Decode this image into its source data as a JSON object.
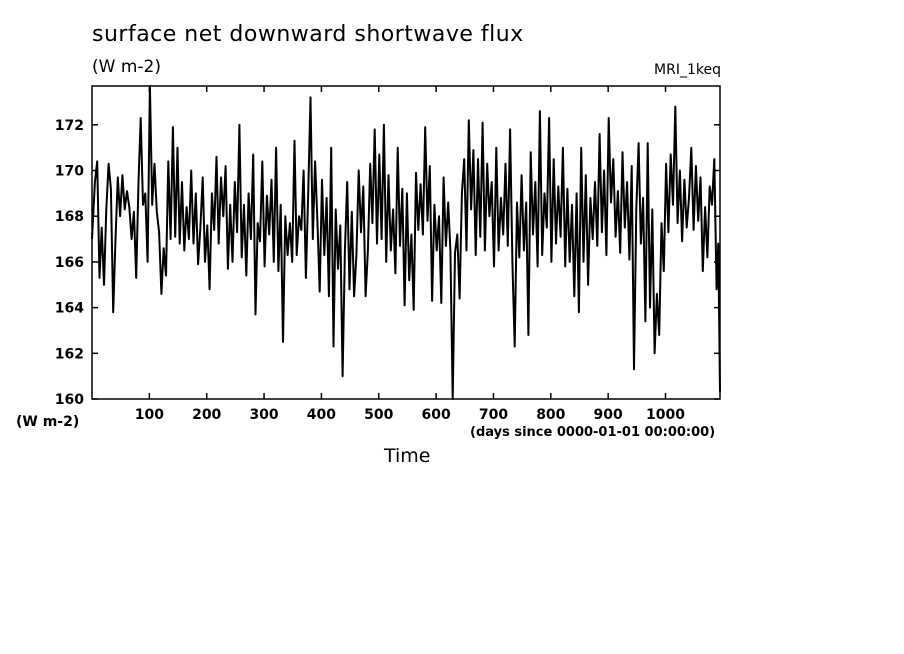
{
  "chart_data": {
    "type": "line",
    "title": "surface net downward shortwave flux",
    "units": "(W m-2)",
    "dataset": "MRI_1keq",
    "ylabel_units": "(W m-2)",
    "xlabel": "Time",
    "xunits": "(days since 0000-01-01 00:00:00)",
    "xlim": [
      0,
      1095
    ],
    "ylim": [
      160,
      173.7
    ],
    "xticks": [
      100,
      200,
      300,
      400,
      500,
      600,
      700,
      800,
      900,
      1000
    ],
    "yticks": [
      160,
      162,
      164,
      166,
      168,
      170,
      172
    ],
    "series": [
      {
        "color": "#000000",
        "points": [
          [
            0,
            167.0
          ],
          [
            5,
            169.5
          ],
          [
            9,
            170.4
          ],
          [
            13,
            165.3
          ],
          [
            17,
            167.5
          ],
          [
            21,
            165.0
          ],
          [
            25,
            168.3
          ],
          [
            29,
            170.3
          ],
          [
            33,
            169.2
          ],
          [
            37,
            163.8
          ],
          [
            41,
            167.0
          ],
          [
            45,
            169.7
          ],
          [
            49,
            168.0
          ],
          [
            53,
            169.8
          ],
          [
            57,
            168.3
          ],
          [
            61,
            169.1
          ],
          [
            65,
            168.4
          ],
          [
            69,
            167.0
          ],
          [
            73,
            168.2
          ],
          [
            77,
            165.3
          ],
          [
            81,
            169.5
          ],
          [
            85,
            172.3
          ],
          [
            89,
            168.5
          ],
          [
            93,
            169.0
          ],
          [
            97,
            166.0
          ],
          [
            101,
            173.7
          ],
          [
            105,
            168.5
          ],
          [
            109,
            170.3
          ],
          [
            113,
            168.2
          ],
          [
            117,
            167.3
          ],
          [
            121,
            164.6
          ],
          [
            125,
            166.6
          ],
          [
            129,
            165.4
          ],
          [
            133,
            170.4
          ],
          [
            137,
            167.0
          ],
          [
            141,
            171.9
          ],
          [
            145,
            167.1
          ],
          [
            149,
            171.0
          ],
          [
            153,
            166.8
          ],
          [
            157,
            169.5
          ],
          [
            161,
            166.5
          ],
          [
            165,
            168.4
          ],
          [
            169,
            167.0
          ],
          [
            173,
            170.0
          ],
          [
            177,
            166.8
          ],
          [
            181,
            169.0
          ],
          [
            185,
            165.9
          ],
          [
            189,
            167.5
          ],
          [
            193,
            169.7
          ],
          [
            197,
            166.0
          ],
          [
            201,
            167.6
          ],
          [
            205,
            164.8
          ],
          [
            209,
            169.0
          ],
          [
            213,
            167.4
          ],
          [
            217,
            170.6
          ],
          [
            221,
            166.8
          ],
          [
            225,
            169.7
          ],
          [
            229,
            168.0
          ],
          [
            233,
            170.2
          ],
          [
            237,
            165.7
          ],
          [
            241,
            168.5
          ],
          [
            245,
            166.0
          ],
          [
            249,
            169.5
          ],
          [
            253,
            167.3
          ],
          [
            257,
            172.0
          ],
          [
            261,
            166.2
          ],
          [
            265,
            168.5
          ],
          [
            269,
            165.4
          ],
          [
            273,
            169.0
          ],
          [
            277,
            167.0
          ],
          [
            281,
            170.7
          ],
          [
            285,
            163.7
          ],
          [
            289,
            167.7
          ],
          [
            293,
            166.9
          ],
          [
            297,
            170.4
          ],
          [
            301,
            165.8
          ],
          [
            305,
            168.9
          ],
          [
            309,
            167.2
          ],
          [
            313,
            169.6
          ],
          [
            317,
            166.0
          ],
          [
            321,
            171.0
          ],
          [
            325,
            165.6
          ],
          [
            329,
            168.5
          ],
          [
            333,
            162.5
          ],
          [
            337,
            168.0
          ],
          [
            341,
            166.3
          ],
          [
            345,
            167.7
          ],
          [
            349,
            166.0
          ],
          [
            353,
            171.3
          ],
          [
            357,
            166.3
          ],
          [
            361,
            168.0
          ],
          [
            365,
            167.4
          ],
          [
            369,
            170.0
          ],
          [
            373,
            165.3
          ],
          [
            377,
            169.0
          ],
          [
            381,
            173.2
          ],
          [
            385,
            167.0
          ],
          [
            389,
            170.4
          ],
          [
            393,
            167.8
          ],
          [
            397,
            164.7
          ],
          [
            401,
            169.6
          ],
          [
            405,
            166.3
          ],
          [
            409,
            168.8
          ],
          [
            413,
            164.5
          ],
          [
            417,
            171.0
          ],
          [
            421,
            162.3
          ],
          [
            425,
            168.3
          ],
          [
            429,
            165.7
          ],
          [
            433,
            167.6
          ],
          [
            437,
            161.0
          ],
          [
            441,
            166.5
          ],
          [
            445,
            169.5
          ],
          [
            449,
            164.8
          ],
          [
            453,
            168.2
          ],
          [
            457,
            164.5
          ],
          [
            461,
            166.3
          ],
          [
            465,
            170.0
          ],
          [
            469,
            167.3
          ],
          [
            473,
            169.3
          ],
          [
            477,
            164.5
          ],
          [
            481,
            166.5
          ],
          [
            485,
            170.3
          ],
          [
            489,
            167.7
          ],
          [
            493,
            171.8
          ],
          [
            497,
            166.8
          ],
          [
            501,
            170.7
          ],
          [
            505,
            167.0
          ],
          [
            509,
            172.0
          ],
          [
            513,
            166.0
          ],
          [
            517,
            169.8
          ],
          [
            521,
            166.5
          ],
          [
            525,
            168.3
          ],
          [
            529,
            165.5
          ],
          [
            533,
            171.0
          ],
          [
            537,
            166.7
          ],
          [
            541,
            169.2
          ],
          [
            545,
            164.1
          ],
          [
            549,
            169.0
          ],
          [
            553,
            165.2
          ],
          [
            557,
            167.2
          ],
          [
            561,
            163.9
          ],
          [
            565,
            169.9
          ],
          [
            569,
            167.4
          ],
          [
            573,
            169.4
          ],
          [
            577,
            167.2
          ],
          [
            581,
            171.9
          ],
          [
            585,
            167.8
          ],
          [
            589,
            170.2
          ],
          [
            593,
            164.3
          ],
          [
            597,
            168.5
          ],
          [
            601,
            166.5
          ],
          [
            605,
            168.0
          ],
          [
            609,
            164.2
          ],
          [
            613,
            169.7
          ],
          [
            617,
            166.7
          ],
          [
            621,
            168.6
          ],
          [
            625,
            166.5
          ],
          [
            629,
            160.0
          ],
          [
            633,
            166.4
          ],
          [
            637,
            167.2
          ],
          [
            641,
            164.4
          ],
          [
            645,
            169.0
          ],
          [
            649,
            170.5
          ],
          [
            653,
            166.5
          ],
          [
            657,
            172.2
          ],
          [
            661,
            168.3
          ],
          [
            665,
            170.9
          ],
          [
            669,
            166.3
          ],
          [
            673,
            170.5
          ],
          [
            677,
            167.1
          ],
          [
            681,
            172.1
          ],
          [
            685,
            166.5
          ],
          [
            689,
            170.3
          ],
          [
            693,
            168.0
          ],
          [
            697,
            169.5
          ],
          [
            701,
            165.8
          ],
          [
            705,
            171.0
          ],
          [
            709,
            166.5
          ],
          [
            713,
            168.8
          ],
          [
            717,
            167.2
          ],
          [
            721,
            170.3
          ],
          [
            725,
            166.7
          ],
          [
            729,
            171.8
          ],
          [
            733,
            166.0
          ],
          [
            737,
            162.3
          ],
          [
            741,
            168.6
          ],
          [
            745,
            166.2
          ],
          [
            749,
            169.8
          ],
          [
            753,
            166.5
          ],
          [
            757,
            168.6
          ],
          [
            761,
            162.8
          ],
          [
            765,
            170.8
          ],
          [
            769,
            167.2
          ],
          [
            773,
            169.5
          ],
          [
            777,
            165.8
          ],
          [
            781,
            172.6
          ],
          [
            785,
            166.3
          ],
          [
            789,
            169.0
          ],
          [
            793,
            167.5
          ],
          [
            797,
            172.3
          ],
          [
            801,
            166.0
          ],
          [
            805,
            170.5
          ],
          [
            809,
            166.8
          ],
          [
            813,
            169.3
          ],
          [
            817,
            167.1
          ],
          [
            821,
            171.0
          ],
          [
            825,
            165.8
          ],
          [
            829,
            169.2
          ],
          [
            833,
            166.0
          ],
          [
            837,
            168.5
          ],
          [
            841,
            164.5
          ],
          [
            845,
            169.0
          ],
          [
            849,
            163.8
          ],
          [
            853,
            171.0
          ],
          [
            857,
            166.0
          ],
          [
            861,
            169.8
          ],
          [
            865,
            165.0
          ],
          [
            869,
            168.8
          ],
          [
            873,
            167.0
          ],
          [
            877,
            169.5
          ],
          [
            881,
            166.7
          ],
          [
            885,
            171.6
          ],
          [
            889,
            167.3
          ],
          [
            893,
            170.0
          ],
          [
            897,
            166.3
          ],
          [
            901,
            172.3
          ],
          [
            905,
            168.6
          ],
          [
            909,
            170.5
          ],
          [
            913,
            167.1
          ],
          [
            917,
            169.1
          ],
          [
            921,
            166.4
          ],
          [
            925,
            170.8
          ],
          [
            929,
            167.5
          ],
          [
            933,
            169.5
          ],
          [
            937,
            166.1
          ],
          [
            941,
            170.2
          ],
          [
            945,
            161.3
          ],
          [
            949,
            168.3
          ],
          [
            953,
            171.2
          ],
          [
            957,
            166.8
          ],
          [
            961,
            168.8
          ],
          [
            965,
            163.4
          ],
          [
            969,
            171.2
          ],
          [
            973,
            164.0
          ],
          [
            977,
            168.3
          ],
          [
            981,
            162.0
          ],
          [
            985,
            164.6
          ],
          [
            989,
            162.8
          ],
          [
            993,
            167.7
          ],
          [
            997,
            165.6
          ],
          [
            1001,
            170.3
          ],
          [
            1005,
            167.3
          ],
          [
            1009,
            170.7
          ],
          [
            1013,
            168.5
          ],
          [
            1017,
            172.8
          ],
          [
            1021,
            167.7
          ],
          [
            1025,
            170.0
          ],
          [
            1029,
            166.9
          ],
          [
            1033,
            169.6
          ],
          [
            1037,
            167.5
          ],
          [
            1041,
            168.8
          ],
          [
            1045,
            171.0
          ],
          [
            1049,
            167.4
          ],
          [
            1053,
            170.2
          ],
          [
            1057,
            167.8
          ],
          [
            1061,
            169.7
          ],
          [
            1065,
            165.6
          ],
          [
            1069,
            168.4
          ],
          [
            1073,
            166.2
          ],
          [
            1077,
            169.3
          ],
          [
            1081,
            168.5
          ],
          [
            1085,
            170.5
          ],
          [
            1089,
            164.8
          ],
          [
            1092,
            166.8
          ],
          [
            1095,
            160.3
          ]
        ]
      }
    ]
  }
}
